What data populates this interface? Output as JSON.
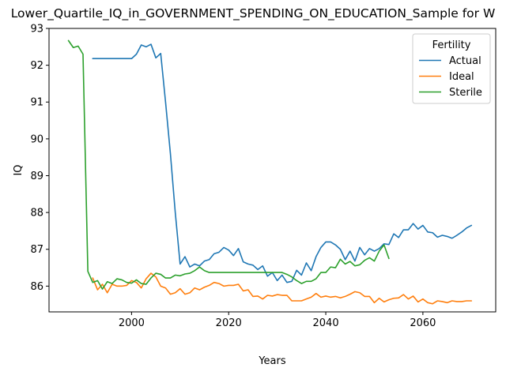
{
  "chart_data": {
    "type": "line",
    "title": "Lower_Quartile_IQ_in_GOVERNMENT_SPENDING_ON_EDUCATION_Sample for W",
    "xlabel": "Years",
    "ylabel": "IQ",
    "xlim": [
      1983,
      2075
    ],
    "ylim": [
      85.3,
      93.0
    ],
    "xticks": [
      2000,
      2020,
      2040,
      2060
    ],
    "yticks": [
      86,
      87,
      88,
      89,
      90,
      91,
      92,
      93
    ],
    "grid": false,
    "legend": {
      "title": "Fertility",
      "placement": "top-right"
    },
    "series": [
      {
        "name": "Actual",
        "color": "#1f77b4",
        "x": [
          1992,
          1993,
          1994,
          1995,
          1996,
          1997,
          1998,
          1999,
          2000,
          2001,
          2002,
          2003,
          2004,
          2005,
          2006,
          2007,
          2008,
          2009,
          2010,
          2011,
          2012,
          2013,
          2014,
          2015,
          2016,
          2017,
          2018,
          2019,
          2020,
          2021,
          2022,
          2023,
          2024,
          2025,
          2026,
          2027,
          2028,
          2029,
          2030,
          2031,
          2032,
          2033,
          2034,
          2035,
          2036,
          2037,
          2038,
          2039,
          2040,
          2041,
          2042,
          2043,
          2044,
          2045,
          2046,
          2047,
          2048,
          2049,
          2050,
          2051,
          2052,
          2053,
          2054,
          2055,
          2056,
          2057,
          2058,
          2059,
          2060,
          2061,
          2062,
          2063,
          2064,
          2065,
          2066,
          2067,
          2068,
          2069,
          2070
        ],
        "values": [
          92.18,
          92.18,
          92.18,
          92.18,
          92.18,
          92.18,
          92.18,
          92.18,
          92.18,
          92.3,
          92.55,
          92.5,
          92.57,
          92.2,
          92.32,
          91.0,
          89.6,
          88.0,
          86.6,
          86.8,
          86.52,
          86.6,
          86.55,
          86.68,
          86.72,
          86.88,
          86.92,
          87.05,
          86.98,
          86.83,
          87.02,
          86.66,
          86.6,
          86.57,
          86.45,
          86.55,
          86.27,
          86.37,
          86.15,
          86.3,
          86.1,
          86.13,
          86.43,
          86.3,
          86.63,
          86.42,
          86.8,
          87.05,
          87.2,
          87.2,
          87.12,
          87.0,
          86.72,
          86.95,
          86.68,
          87.05,
          86.85,
          87.02,
          86.95,
          87.02,
          87.15,
          87.13,
          87.42,
          87.32,
          87.53,
          87.53,
          87.7,
          87.55,
          87.65,
          87.47,
          87.45,
          87.33,
          87.38,
          87.35,
          87.3,
          87.38,
          87.47,
          87.58,
          87.65
        ]
      },
      {
        "name": "Ideal",
        "color": "#ff7f0e",
        "x": [
          1992,
          1993,
          1994,
          1995,
          1996,
          1997,
          1998,
          1999,
          2000,
          2001,
          2002,
          2003,
          2004,
          2005,
          2006,
          2007,
          2008,
          2009,
          2010,
          2011,
          2012,
          2013,
          2014,
          2015,
          2016,
          2017,
          2018,
          2019,
          2020,
          2021,
          2022,
          2023,
          2024,
          2025,
          2026,
          2027,
          2028,
          2029,
          2030,
          2031,
          2032,
          2033,
          2034,
          2035,
          2036,
          2037,
          2038,
          2039,
          2040,
          2041,
          2042,
          2043,
          2044,
          2045,
          2046,
          2047,
          2048,
          2049,
          2050,
          2051,
          2052,
          2053,
          2054,
          2055,
          2056,
          2057,
          2058,
          2059,
          2060,
          2061,
          2062,
          2063,
          2064,
          2065,
          2066,
          2067,
          2068,
          2069,
          2070
        ],
        "values": [
          86.22,
          85.9,
          86.05,
          85.82,
          86.05,
          86.0,
          86.0,
          86.02,
          86.15,
          86.1,
          85.95,
          86.2,
          86.35,
          86.25,
          86.0,
          85.95,
          85.78,
          85.82,
          85.93,
          85.78,
          85.82,
          85.95,
          85.9,
          85.97,
          86.02,
          86.1,
          86.07,
          86.0,
          86.02,
          86.02,
          86.05,
          85.87,
          85.9,
          85.72,
          85.73,
          85.65,
          85.75,
          85.73,
          85.77,
          85.75,
          85.75,
          85.6,
          85.6,
          85.6,
          85.65,
          85.7,
          85.8,
          85.7,
          85.73,
          85.7,
          85.72,
          85.68,
          85.72,
          85.78,
          85.85,
          85.82,
          85.72,
          85.72,
          85.55,
          85.67,
          85.57,
          85.63,
          85.67,
          85.68,
          85.77,
          85.65,
          85.73,
          85.57,
          85.65,
          85.55,
          85.52,
          85.6,
          85.58,
          85.55,
          85.6,
          85.58,
          85.58,
          85.6,
          85.6
        ]
      },
      {
        "name": "Sterile",
        "color": "#2ca02c",
        "x": [
          1987,
          1988,
          1989,
          1990,
          1991,
          1992,
          1993,
          1994,
          1995,
          1996,
          1997,
          1998,
          1999,
          2000,
          2001,
          2002,
          2003,
          2004,
          2005,
          2006,
          2007,
          2008,
          2009,
          2010,
          2011,
          2012,
          2013,
          2014,
          2015,
          2016,
          2017,
          2018,
          2019,
          2020,
          2021,
          2022,
          2023,
          2024,
          2025,
          2026,
          2027,
          2028,
          2029,
          2030,
          2031,
          2032,
          2033,
          2034,
          2035,
          2036,
          2037,
          2038,
          2039,
          2040,
          2041,
          2042,
          2043,
          2044,
          2045,
          2046,
          2047,
          2048,
          2049,
          2050,
          2051,
          2052,
          2053
        ],
        "values": [
          92.67,
          92.48,
          92.52,
          92.3,
          86.4,
          86.1,
          86.15,
          85.92,
          86.12,
          86.07,
          86.2,
          86.17,
          86.1,
          86.08,
          86.17,
          86.07,
          86.05,
          86.22,
          86.35,
          86.32,
          86.22,
          86.22,
          86.3,
          86.28,
          86.33,
          86.35,
          86.42,
          86.52,
          86.42,
          86.37,
          86.37,
          86.37,
          86.37,
          86.37,
          86.37,
          86.37,
          86.37,
          86.37,
          86.37,
          86.37,
          86.37,
          86.37,
          86.37,
          86.37,
          86.37,
          86.32,
          86.25,
          86.15,
          86.07,
          86.13,
          86.13,
          86.2,
          86.37,
          86.37,
          86.52,
          86.5,
          86.73,
          86.6,
          86.67,
          86.55,
          86.58,
          86.7,
          86.77,
          86.68,
          86.95,
          87.12,
          86.75
        ]
      }
    ]
  }
}
